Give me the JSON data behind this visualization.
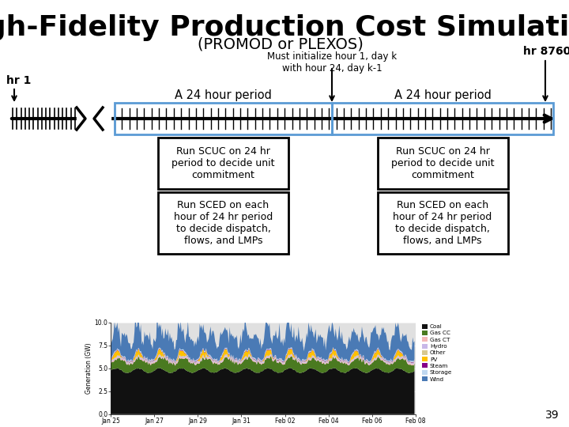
{
  "title": "High-Fidelity Production Cost Simulation",
  "subtitle": "(PROMOD or PLEXOS)",
  "title_fontsize": 26,
  "subtitle_fontsize": 14,
  "bg_color": "#ffffff",
  "hr1_label": "hr 1",
  "hr8760_label": "hr 8760",
  "must_init_line1": "Must initialize hour 1, day k",
  "must_init_line2": "with hour 24, day k-1",
  "period_label": "A 24 hour period",
  "scuc_text": "Run SCUC on 24 hr\nperiod to decide unit\ncommitment",
  "sced_text": "Run SCED on each\nhour of 24 hr period\nto decide dispatch,\nflows, and LMPs",
  "page_number": "39",
  "chart_legend": [
    "Coal",
    "Gas CC",
    "Gas CT",
    "Hydro",
    "Other",
    "PV",
    "Steam",
    "Storage",
    "Wind"
  ],
  "chart_colors": [
    "#111111",
    "#4a7a20",
    "#f4b8b8",
    "#c8b8e8",
    "#d8c890",
    "#ffc000",
    "#880088",
    "#c0d8f0",
    "#4a7ab5"
  ]
}
